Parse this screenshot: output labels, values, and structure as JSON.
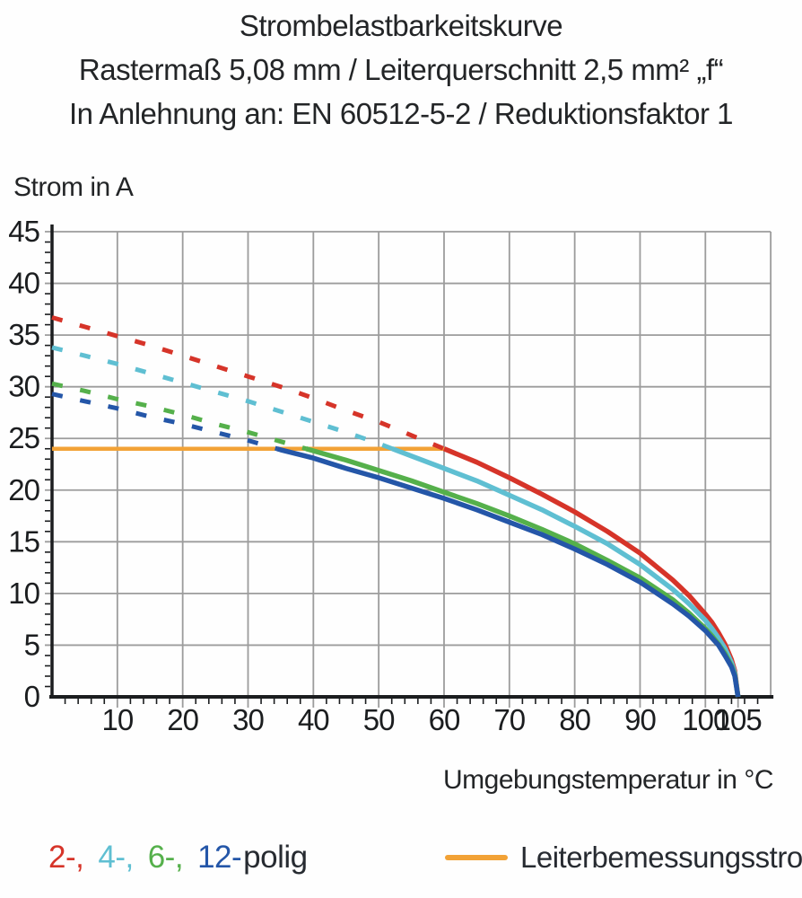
{
  "title": {
    "line1": "Strombelastbarkeitskurve",
    "line2": "Rastermaß 5,08 mm / Leiterquerschnitt 2,5 mm² „f“",
    "line3": "In Anlehnung an: EN 60512-5-2 / Reduktionsfaktor 1"
  },
  "axes": {
    "y_label": "Strom in A",
    "x_label": "Umgebungstemperatur in °C"
  },
  "legend": {
    "poles": {
      "items": [
        {
          "label": "2-,",
          "color": "#d63429"
        },
        {
          "label": "4-,",
          "color": "#5fbfd2"
        },
        {
          "label": "6-,",
          "color": "#55b04b"
        },
        {
          "label": "12-",
          "color": "#2456a8"
        }
      ],
      "suffix": "polig"
    },
    "rated": {
      "label": "Leiterbemessungsstrom",
      "color": "#f2a236"
    }
  },
  "chart_data": {
    "type": "line",
    "title": "Strombelastbarkeitskurve",
    "xlabel": "Umgebungstemperatur in °C",
    "ylabel": "Strom in A",
    "xlim": [
      0,
      110
    ],
    "ylim": [
      0,
      45
    ],
    "x_tick_labels": [
      10,
      20,
      30,
      40,
      50,
      60,
      70,
      80,
      90,
      100,
      105
    ],
    "x_gridlines": [
      10,
      20,
      30,
      40,
      50,
      60,
      70,
      80,
      90,
      100,
      110
    ],
    "y_ticks": [
      0,
      5,
      10,
      15,
      20,
      25,
      30,
      35,
      40,
      45
    ],
    "x_minor_step": 2,
    "y_minor_step": 1,
    "grid": true,
    "grid_color": "#9c9c9c",
    "axis_color": "#1b1d1f",
    "style_note": "curves are dashed above the rated current line and solid below it",
    "rated_current": {
      "label": "Leiterbemessungsstrom",
      "value": 24,
      "x_start": 0,
      "x_end": 60,
      "color": "#f2a236"
    },
    "series": [
      {
        "name": "2-polig",
        "color": "#d63429",
        "points": [
          [
            0,
            36.7
          ],
          [
            5,
            35.8
          ],
          [
            10,
            34.9
          ],
          [
            15,
            34.0
          ],
          [
            20,
            33.0
          ],
          [
            25,
            32.0
          ],
          [
            30,
            31.0
          ],
          [
            35,
            30.0
          ],
          [
            40,
            28.9
          ],
          [
            45,
            27.7
          ],
          [
            50,
            26.6
          ],
          [
            55,
            25.3
          ],
          [
            60,
            24.0
          ],
          [
            65,
            22.7
          ],
          [
            70,
            21.2
          ],
          [
            75,
            19.6
          ],
          [
            80,
            17.9
          ],
          [
            85,
            16.0
          ],
          [
            90,
            13.9
          ],
          [
            95,
            11.3
          ],
          [
            97.5,
            9.8
          ],
          [
            100,
            8.0
          ],
          [
            101,
            7.2
          ],
          [
            102,
            6.2
          ],
          [
            103,
            5.1
          ],
          [
            104,
            3.6
          ],
          [
            104.5,
            2.5
          ],
          [
            105,
            0
          ]
        ]
      },
      {
        "name": "4-polig",
        "color": "#5fbfd2",
        "points": [
          [
            0,
            33.8
          ],
          [
            5,
            33.0
          ],
          [
            10,
            32.2
          ],
          [
            15,
            31.3
          ],
          [
            20,
            30.4
          ],
          [
            25,
            29.5
          ],
          [
            30,
            28.6
          ],
          [
            35,
            27.6
          ],
          [
            40,
            26.6
          ],
          [
            45,
            25.6
          ],
          [
            50,
            24.5
          ],
          [
            55,
            23.3
          ],
          [
            60,
            22.1
          ],
          [
            65,
            20.9
          ],
          [
            70,
            19.5
          ],
          [
            75,
            18.1
          ],
          [
            80,
            16.5
          ],
          [
            85,
            14.8
          ],
          [
            90,
            12.8
          ],
          [
            95,
            10.4
          ],
          [
            97.5,
            9.0
          ],
          [
            100,
            7.4
          ],
          [
            101,
            6.6
          ],
          [
            102,
            5.7
          ],
          [
            103,
            4.7
          ],
          [
            104,
            3.3
          ],
          [
            104.5,
            2.3
          ],
          [
            105,
            0
          ]
        ]
      },
      {
        "name": "6-polig",
        "color": "#55b04b",
        "points": [
          [
            0,
            30.3
          ],
          [
            5,
            29.6
          ],
          [
            10,
            28.8
          ],
          [
            15,
            28.1
          ],
          [
            20,
            27.3
          ],
          [
            25,
            26.4
          ],
          [
            30,
            25.6
          ],
          [
            35,
            24.7
          ],
          [
            40,
            23.8
          ],
          [
            45,
            22.9
          ],
          [
            50,
            21.9
          ],
          [
            55,
            20.9
          ],
          [
            60,
            19.8
          ],
          [
            65,
            18.7
          ],
          [
            70,
            17.5
          ],
          [
            75,
            16.2
          ],
          [
            80,
            14.8
          ],
          [
            85,
            13.2
          ],
          [
            90,
            11.5
          ],
          [
            95,
            9.4
          ],
          [
            97.5,
            8.1
          ],
          [
            100,
            6.6
          ],
          [
            101,
            5.9
          ],
          [
            102,
            5.1
          ],
          [
            103,
            4.2
          ],
          [
            104,
            3.0
          ],
          [
            104.5,
            2.1
          ],
          [
            105,
            0
          ]
        ]
      },
      {
        "name": "12-polig",
        "color": "#2456a8",
        "points": [
          [
            0,
            29.3
          ],
          [
            5,
            28.6
          ],
          [
            10,
            27.9
          ],
          [
            15,
            27.1
          ],
          [
            20,
            26.4
          ],
          [
            25,
            25.6
          ],
          [
            30,
            24.8
          ],
          [
            35,
            23.9
          ],
          [
            40,
            23.1
          ],
          [
            45,
            22.1
          ],
          [
            50,
            21.2
          ],
          [
            55,
            20.2
          ],
          [
            60,
            19.2
          ],
          [
            65,
            18.1
          ],
          [
            70,
            16.9
          ],
          [
            75,
            15.7
          ],
          [
            80,
            14.3
          ],
          [
            85,
            12.8
          ],
          [
            90,
            11.1
          ],
          [
            95,
            9.0
          ],
          [
            97.5,
            7.8
          ],
          [
            100,
            6.4
          ],
          [
            101,
            5.7
          ],
          [
            102,
            5.0
          ],
          [
            103,
            4.0
          ],
          [
            104,
            2.9
          ],
          [
            104.5,
            2.0
          ],
          [
            105,
            0
          ]
        ]
      }
    ]
  }
}
